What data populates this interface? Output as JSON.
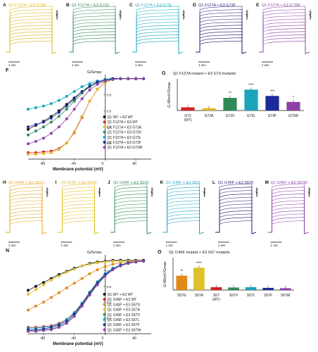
{
  "panels_top": [
    {
      "letter": "A",
      "label": "Q1 F127A + E3 G73A",
      "color": "#d8b418"
    },
    {
      "letter": "B",
      "label": "Q1 F127A + E3 G73V",
      "color": "#2f8a55"
    },
    {
      "letter": "C",
      "label": "Q1 F127A + E3 G73L",
      "color": "#1aa4bc"
    },
    {
      "letter": "D",
      "label": "Q1 F127A + E3 G73F",
      "color": "#1c1c74"
    },
    {
      "letter": "E",
      "label": "Q1 F127A + E3 G73W",
      "color": "#8c3fa6"
    }
  ],
  "panels_mid": [
    {
      "letter": "H",
      "label": "Q1 I145F + E3 S57G",
      "color": "#e0a21c"
    },
    {
      "letter": "I",
      "label": "Q1 I145F + E3 S57A",
      "color": "#e0bb1c"
    },
    {
      "letter": "J",
      "label": "Q1 I145F + E3 S57V",
      "color": "#2f8a55"
    },
    {
      "letter": "K",
      "label": "Q1 I145F + E3 S57L",
      "color": "#1aa4bc"
    },
    {
      "letter": "L",
      "label": "Q1 I145F + E3 S57F",
      "color": "#1c1c74"
    },
    {
      "letter": "M",
      "label": "Q1 I145F + E3 S57W",
      "color": "#8c3fa6"
    }
  ],
  "scale": {
    "current": "4 μA",
    "time": "1 sec"
  },
  "panel_F": {
    "letter": "F",
    "ylabel": "G/Gmax",
    "xlabel": "Membrane potential (mV)",
    "yticks": [
      "1.0",
      "0.8",
      "0.6",
      "0.4",
      "0.2"
    ],
    "xticks": [
      "-80",
      "-40",
      "0",
      "40"
    ],
    "legend": [
      "Q1 WT + E3 WT",
      "Q1 F127A + E3 WT",
      "Q1 F127A + E3 G73A",
      "Q1 F127A + E3 G73V",
      "Q1 F127A + E3 G73L",
      "Q1 F127A + E3 G73F",
      "Q1 F127A + E3 G73W"
    ]
  },
  "panel_G": {
    "letter": "G",
    "title": "Q1 F127A mutant + E3 G73 mutants",
    "ylabel": "G-80mV/Gmax",
    "categories": [
      "G73 (WT)",
      "G73A",
      "G73V",
      "G73L",
      "G73F",
      "G73W"
    ],
    "stars": [
      "",
      "",
      "**",
      "****",
      "***",
      "*"
    ]
  },
  "panel_N": {
    "letter": "N",
    "ylabel": "G/Gmax",
    "xlabel": "Membrane potential (mV)",
    "yticks": [
      "0.8",
      "0.6",
      "0.4",
      "0.2"
    ],
    "xticks": [
      "-80",
      "-40",
      "0",
      "40"
    ],
    "legend": [
      "Q1 WT + E3 WT",
      "Q1 I145F + E3 WT",
      "Q1 I145F + E3 S57G",
      "Q1 I145F + E3 S57A",
      "Q1 I145F + E3 S57V",
      "Q1 I145F + E3 S57L",
      "Q1 I145F + E3 S57F",
      "Q1 I145F + E3 S57W"
    ]
  },
  "panel_O": {
    "letter": "O",
    "title": "Q1 I145F mutant + E3 S57 mutants",
    "ylabel": "G-80mV/Gmax",
    "categories": [
      "S57G",
      "S57A",
      "S57 (WT)",
      "S57V",
      "S57L",
      "S57F",
      "S57W"
    ],
    "stars": [
      "**",
      "****",
      "",
      "",
      "",
      "",
      ""
    ]
  },
  "chart_data": [
    {
      "type": "scatter",
      "panel": "F",
      "ylabel": "G/Gmax",
      "xlabel": "Membrane potential (mV)",
      "xlim": [
        -100,
        60
      ],
      "ylim": [
        0,
        1.05
      ],
      "x": [
        -100,
        -90,
        -80,
        -70,
        -60,
        -50,
        -40,
        -30,
        -20,
        -10,
        0,
        10,
        20,
        30,
        40,
        50
      ],
      "series": [
        {
          "name": "Q1 WT + E3 WT",
          "color": "#111111",
          "values": [
            0.37,
            0.42,
            0.47,
            0.53,
            0.6,
            0.68,
            0.76,
            0.84,
            0.9,
            0.95,
            0.98,
            1.0,
            1.0,
            1.0,
            1.0,
            1.0
          ]
        },
        {
          "name": "Q1 F127A + E3 WT",
          "color": "#d42020",
          "values": [
            0.08,
            0.08,
            0.09,
            0.1,
            0.13,
            0.2,
            0.33,
            0.52,
            0.72,
            0.87,
            0.95,
            0.99,
            1.0,
            1.0,
            1.0,
            1.0
          ]
        },
        {
          "name": "Q1 F127A + E3 G73A",
          "color": "#e0b52a",
          "values": [
            0.06,
            0.06,
            0.07,
            0.08,
            0.12,
            0.2,
            0.34,
            0.53,
            0.72,
            0.87,
            0.95,
            0.99,
            1.0,
            1.0,
            1.0,
            1.0
          ]
        },
        {
          "name": "Q1 F127A + E3 G73V",
          "color": "#2f8a55",
          "values": [
            0.3,
            0.35,
            0.4,
            0.46,
            0.53,
            0.62,
            0.72,
            0.82,
            0.9,
            0.95,
            0.98,
            1.0,
            1.0,
            1.0,
            1.0,
            1.0
          ]
        },
        {
          "name": "Q1 F127A + E3 G73L",
          "color": "#1aa4bc",
          "values": [
            0.62,
            0.64,
            0.66,
            0.69,
            0.73,
            0.78,
            0.84,
            0.9,
            0.94,
            0.97,
            0.99,
            1.0,
            1.0,
            1.0,
            1.0,
            1.0
          ]
        },
        {
          "name": "Q1 F127A + E3 G73F",
          "color": "#1c2a9a",
          "values": [
            0.4,
            0.43,
            0.46,
            0.51,
            0.58,
            0.66,
            0.75,
            0.84,
            0.91,
            0.96,
            0.98,
            1.0,
            1.0,
            1.0,
            1.0,
            1.0
          ]
        },
        {
          "name": "Q1 F127A + E3 G73W",
          "color": "#8c3fa6",
          "values": [
            0.19,
            0.22,
            0.26,
            0.32,
            0.4,
            0.5,
            0.62,
            0.75,
            0.86,
            0.93,
            0.97,
            0.99,
            1.0,
            1.0,
            1.0,
            1.0
          ]
        }
      ]
    },
    {
      "type": "bar",
      "panel": "G",
      "title": "Q1 F127A mutant + E3 G73 mutants",
      "ylabel": "G-80mV/Gmax",
      "ylim": [
        0,
        1.0
      ],
      "categories": [
        "G73 (WT)",
        "G73A",
        "G73V",
        "G73L",
        "G73F",
        "G73W"
      ],
      "values": [
        0.1,
        0.07,
        0.4,
        0.66,
        0.46,
        0.27
      ],
      "colors": [
        "#d42020",
        "#e0b52a",
        "#2f8a55",
        "#1aa4bc",
        "#1c2a9a",
        "#8c3fa6"
      ]
    },
    {
      "type": "scatter",
      "panel": "N",
      "ylabel": "G/Gmax",
      "xlabel": "Membrane potential (mV)",
      "xlim": [
        -100,
        60
      ],
      "ylim": [
        0,
        1.0
      ],
      "x": [
        -100,
        -90,
        -80,
        -70,
        -60,
        -50,
        -40,
        -30,
        -20,
        -10,
        0,
        10,
        20,
        30,
        40,
        50
      ],
      "series": [
        {
          "name": "Q1 WT + E3 WT",
          "color": "#111111",
          "values": [
            0.55,
            0.6,
            0.65,
            0.7,
            0.75,
            0.79,
            0.83,
            0.86,
            0.89,
            0.91,
            0.92,
            0.93,
            0.93,
            0.93,
            0.93,
            0.93
          ]
        },
        {
          "name": "Q1 I145F + E3 WT",
          "color": "#d42020",
          "values": [
            0.08,
            0.08,
            0.09,
            0.1,
            0.13,
            0.18,
            0.26,
            0.38,
            0.52,
            0.65,
            0.75,
            0.82,
            0.87,
            0.9,
            0.91,
            0.92
          ]
        },
        {
          "name": "Q1 I145F + E3 S57G",
          "color": "#e08a1a",
          "values": [
            0.3,
            0.35,
            0.4,
            0.46,
            0.52,
            0.58,
            0.64,
            0.7,
            0.76,
            0.81,
            0.85,
            0.88,
            0.9,
            0.91,
            0.92,
            0.92
          ]
        },
        {
          "name": "Q1 I145F + E3 S57A",
          "color": "#e0c02a",
          "values": [
            0.5,
            0.56,
            0.62,
            0.68,
            0.73,
            0.78,
            0.82,
            0.86,
            0.88,
            0.9,
            0.91,
            0.92,
            0.92,
            0.92,
            0.92,
            0.92
          ]
        },
        {
          "name": "Q1 I145F + E3 S57V",
          "color": "#2f8a55",
          "values": [
            0.04,
            0.04,
            0.05,
            0.06,
            0.09,
            0.14,
            0.23,
            0.36,
            0.5,
            0.63,
            0.74,
            0.82,
            0.87,
            0.9,
            0.91,
            0.92
          ]
        },
        {
          "name": "Q1 I145F + E3 S57L",
          "color": "#1aa4bc",
          "values": [
            0.07,
            0.07,
            0.08,
            0.09,
            0.12,
            0.18,
            0.27,
            0.39,
            0.53,
            0.66,
            0.76,
            0.83,
            0.87,
            0.9,
            0.91,
            0.92
          ]
        },
        {
          "name": "Q1 I145F + E3 S57F",
          "color": "#1c2a9a",
          "values": [
            0.05,
            0.05,
            0.06,
            0.08,
            0.11,
            0.16,
            0.25,
            0.37,
            0.51,
            0.64,
            0.75,
            0.82,
            0.87,
            0.9,
            0.91,
            0.92
          ]
        },
        {
          "name": "Q1 I145F + E3 S57W",
          "color": "#8c3fa6",
          "values": [
            0.03,
            0.03,
            0.04,
            0.05,
            0.08,
            0.13,
            0.22,
            0.35,
            0.49,
            0.62,
            0.73,
            0.81,
            0.86,
            0.89,
            0.91,
            0.92
          ]
        }
      ]
    },
    {
      "type": "bar",
      "panel": "O",
      "title": "Q1 I145F mutant + E3 S57 mutants",
      "ylabel": "G-80mV/Gmax",
      "ylim": [
        0,
        0.9
      ],
      "categories": [
        "S57G",
        "S57A",
        "S57 (WT)",
        "S57V",
        "S57L",
        "S57F",
        "S57W"
      ],
      "values": [
        0.4,
        0.62,
        0.08,
        0.07,
        0.08,
        0.06,
        0.05
      ],
      "colors": [
        "#e08a1a",
        "#e0c02a",
        "#d42020",
        "#2f8a55",
        "#1aa4bc",
        "#1c2a9a",
        "#8c3fa6"
      ]
    }
  ]
}
